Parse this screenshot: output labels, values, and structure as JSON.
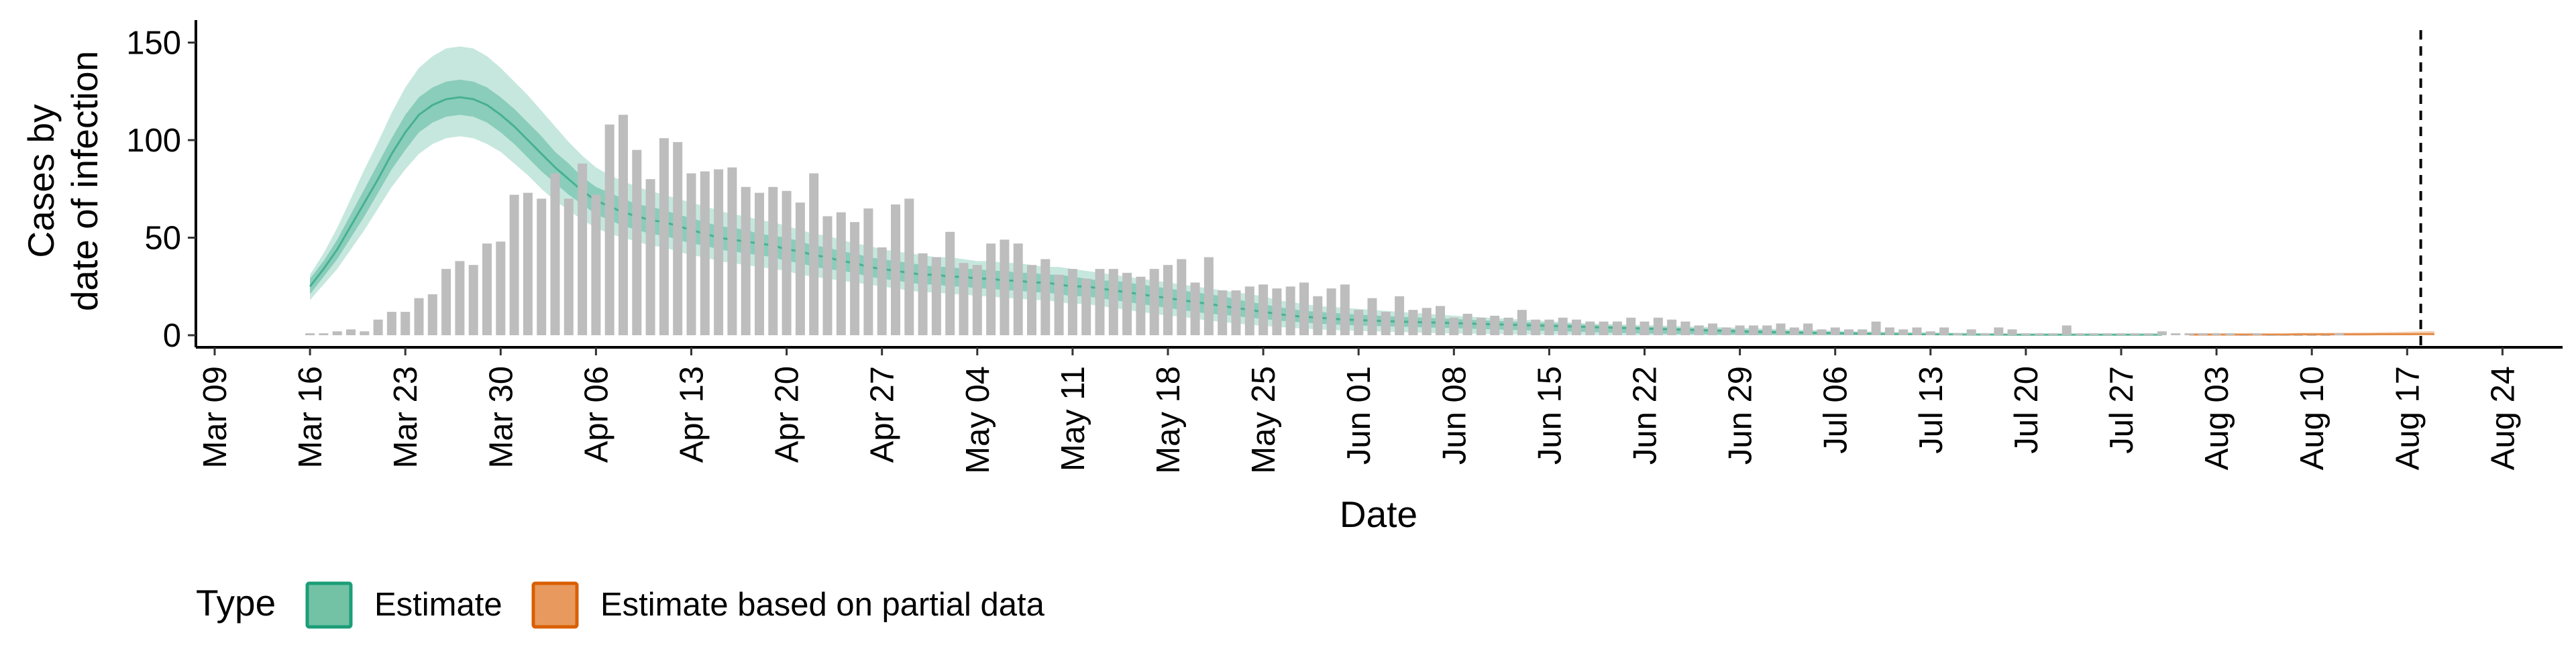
{
  "chart_data": {
    "type": "bar",
    "xlabel": "Date",
    "ylabel_lines": [
      "Cases by",
      "date of infection"
    ],
    "ylim": [
      -5,
      160
    ],
    "y_ticks": [
      0,
      50,
      100,
      150
    ],
    "x_ticks": [
      "Mar 09",
      "Mar 16",
      "Mar 23",
      "Mar 30",
      "Apr 06",
      "Apr 13",
      "Apr 20",
      "Apr 27",
      "May 04",
      "May 11",
      "May 18",
      "May 25",
      "Jun 01",
      "Jun 08",
      "Jun 15",
      "Jun 22",
      "Jun 29",
      "Jul 06",
      "Jul 13",
      "Jul 20",
      "Jul 27",
      "Aug 03",
      "Aug 10",
      "Aug 17",
      "Aug 24"
    ],
    "grid": false,
    "vline_day": 162,
    "reported_cases": {
      "start_date": "Mar 16",
      "values": [
        1,
        1,
        2,
        3,
        2,
        8,
        12,
        12,
        19,
        21,
        34,
        38,
        36,
        47,
        48,
        72,
        73,
        70,
        83,
        70,
        88,
        72,
        108,
        113,
        95,
        80,
        101,
        99,
        83,
        84,
        85,
        86,
        76,
        73,
        76,
        74,
        68,
        83,
        61,
        63,
        58,
        65,
        45,
        67,
        70,
        42,
        40,
        53,
        37,
        36,
        47,
        49,
        47,
        36,
        39,
        31,
        34,
        29,
        34,
        34,
        32,
        30,
        34,
        36,
        39,
        27,
        40,
        23,
        23,
        25,
        26,
        24,
        25,
        27,
        20,
        24,
        26,
        13,
        19,
        12,
        20,
        13,
        14,
        15,
        9,
        11,
        9,
        10,
        9,
        13,
        8,
        8,
        9,
        8,
        7,
        7,
        7,
        9,
        7,
        9,
        8,
        7,
        5,
        6,
        4,
        5,
        5,
        5,
        6,
        4,
        6,
        3,
        4,
        3,
        3,
        7,
        4,
        3,
        4,
        2,
        4,
        1,
        3,
        1,
        4,
        3,
        1,
        1,
        1,
        5,
        1,
        1,
        1,
        1,
        1,
        1,
        2,
        1,
        1,
        1,
        1,
        1,
        0,
        1,
        0,
        0,
        0,
        0,
        0,
        1
      ]
    },
    "estimate": {
      "name": "Estimate",
      "color": "#1b9e77",
      "start_date": "Mar 16",
      "median": [
        25,
        34,
        44,
        56,
        68,
        80,
        93,
        104,
        113,
        118,
        121,
        122,
        121,
        118,
        113,
        107,
        100,
        93,
        86,
        80,
        74,
        69,
        66,
        63,
        61,
        59,
        58,
        56,
        54,
        52,
        50,
        49,
        48,
        47,
        46,
        44,
        43,
        41,
        40,
        38,
        37,
        35,
        34,
        33,
        32,
        31,
        31,
        30,
        30,
        29,
        29,
        28,
        28,
        27,
        27,
        26,
        25,
        25,
        24,
        23,
        22,
        21,
        20,
        19,
        18,
        17,
        16,
        15,
        14,
        13,
        12,
        11,
        10,
        9.5,
        9,
        8.5,
        8,
        7.8,
        7.5,
        7.2,
        7,
        6.8,
        6.6,
        6.4,
        6.2,
        6,
        5.8,
        5.6,
        5.4,
        5.2,
        5,
        4.8,
        4.6,
        4.4,
        4.2,
        4,
        3.8,
        3.6,
        3.4,
        3.2,
        3,
        2.8,
        2.6,
        2.4,
        2.2,
        2,
        1.8,
        1.6,
        1.5,
        1.4,
        1.3,
        1.2,
        1.1,
        1,
        0.9,
        0.8,
        0.7,
        0.6,
        0.5,
        0.5,
        0.4,
        0.4,
        0.3,
        0.3,
        0.3,
        0.2,
        0.2,
        0.2,
        0.2,
        0.2,
        0.2,
        0.2,
        0.2,
        0.2,
        0.2,
        0.2,
        0.2
      ],
      "inner_lower": [
        21,
        30,
        39,
        50,
        61,
        73,
        85,
        95,
        104,
        109,
        112,
        113,
        112,
        109,
        104,
        98,
        91,
        84,
        78,
        72,
        67,
        62,
        59,
        56,
        54,
        52,
        51,
        49,
        47,
        46,
        44,
        43,
        42,
        41,
        40,
        38,
        37,
        35,
        34,
        33,
        32,
        30,
        29,
        28,
        27,
        26,
        26,
        25,
        25,
        24,
        24,
        23,
        23,
        22,
        22,
        21,
        20,
        20,
        19,
        18,
        17,
        16,
        15,
        14,
        13,
        12,
        11,
        10.5,
        9.8,
        9,
        8.3,
        7.6,
        7,
        6.5,
        6,
        5.6,
        5.2,
        5,
        4.8,
        4.6,
        4.4,
        4.2,
        4,
        3.8,
        3.6,
        3.4,
        3.2,
        3,
        2.8,
        2.6,
        2.4,
        2.2,
        2,
        1.8,
        1.6,
        1.4,
        1.2,
        1,
        0.9,
        0.8,
        0.7,
        0.6,
        0.5,
        0.4,
        0.3,
        0.3,
        0.2,
        0.2,
        0.2,
        0.1,
        0.1,
        0.1,
        0.1,
        0.1,
        0.1,
        0.1,
        0.1,
        0.1,
        0.1,
        0.1,
        0.1,
        0.1,
        0.1,
        0.1,
        0.1,
        0.1,
        0.1,
        0.1,
        0.1,
        0.1,
        0.1,
        0.1,
        0.1,
        0.1,
        0.1
      ],
      "inner_upper": [
        29,
        38,
        49,
        62,
        75,
        88,
        101,
        113,
        122,
        127,
        130,
        131,
        130,
        127,
        122,
        116,
        109,
        102,
        94,
        88,
        81,
        76,
        73,
        70,
        67,
        66,
        64,
        62,
        60,
        58,
        56,
        55,
        54,
        52,
        51,
        50,
        48,
        46,
        45,
        43,
        42,
        40,
        39,
        38,
        37,
        36,
        35,
        35,
        34,
        34,
        33,
        33,
        32,
        32,
        31,
        31,
        30,
        29,
        28,
        28,
        27,
        26,
        25,
        24,
        23,
        22,
        21,
        20,
        18.5,
        17,
        16,
        14.5,
        13.5,
        12.5,
        12,
        11.5,
        11,
        10.6,
        10.2,
        9.8,
        9.5,
        9.2,
        8.9,
        8.6,
        8.3,
        8,
        7.7,
        7.4,
        7.1,
        6.8,
        6.5,
        6.2,
        5.9,
        5.6,
        5.3,
        5,
        4.8,
        4.6,
        4.4,
        4.2,
        4,
        3.8,
        3.6,
        3.4,
        3.2,
        3,
        2.8,
        2.6,
        2.4,
        2.2,
        2,
        1.8,
        1.6,
        1.4,
        1.2,
        1,
        0.9,
        0.8,
        0.7,
        0.6,
        0.5,
        0.5,
        0.4,
        0.4,
        0.4,
        0.4,
        0.4,
        0.4,
        0.4,
        0.4,
        0.4,
        0.4,
        0.4,
        0.4,
        0.4
      ],
      "outer_lower": [
        18,
        26,
        34,
        44,
        54,
        65,
        76,
        85,
        93,
        98,
        101,
        102,
        101,
        98,
        94,
        88,
        82,
        75,
        69,
        64,
        59,
        55,
        52,
        50,
        48,
        46,
        45,
        43,
        41,
        40,
        38,
        37,
        36,
        35,
        34,
        33,
        31,
        30,
        29,
        28,
        27,
        26,
        25,
        24,
        23,
        22,
        22,
        21,
        21,
        20,
        20,
        19,
        19,
        18,
        18,
        17,
        16,
        16,
        15,
        14,
        13,
        12,
        11,
        10,
        9.5,
        8.5,
        7.5,
        6.8,
        6,
        5.4,
        4.8,
        4.3,
        3.8,
        3.4,
        3,
        2.7,
        2.4,
        2.2,
        2,
        1.8,
        1.6,
        1.4,
        1.2,
        1,
        0.9,
        0.8,
        0.7,
        0.6,
        0.5,
        0.4,
        0.3,
        0.3,
        0.2,
        0.2,
        0.1,
        0.1,
        0,
        0,
        0,
        0,
        0,
        0,
        0,
        0,
        0,
        0,
        0,
        0,
        0,
        0,
        0,
        0,
        0,
        0,
        0,
        0,
        0,
        0,
        0,
        0,
        0,
        0,
        0,
        0,
        0,
        0,
        0,
        0,
        0,
        0,
        0,
        0,
        0,
        0,
        0,
        0,
        0
      ],
      "outer_upper": [
        31,
        42,
        55,
        70,
        85,
        99,
        114,
        127,
        137,
        143,
        147,
        148,
        147,
        143,
        137,
        130,
        123,
        115,
        107,
        99,
        92,
        86,
        82,
        79,
        76,
        74,
        72,
        70,
        68,
        66,
        64,
        62,
        61,
        59,
        58,
        56,
        54,
        52,
        51,
        49,
        47,
        46,
        44,
        43,
        42,
        41,
        40,
        40,
        39,
        38,
        38,
        37,
        37,
        36,
        35,
        35,
        34,
        33,
        32,
        31,
        30,
        29,
        28,
        27,
        26,
        25,
        24,
        23,
        22,
        21,
        20,
        18,
        17,
        16,
        15,
        14.5,
        14,
        13.5,
        13,
        12.5,
        12,
        11.5,
        11,
        10.5,
        10,
        9.6,
        9.2,
        8.8,
        8.4,
        8,
        7.6,
        7.2,
        6.8,
        6.4,
        6,
        5.8,
        5.6,
        5.4,
        5.2,
        5,
        4.8,
        4.6,
        4.4,
        4.2,
        4,
        3.8,
        3.6,
        3.4,
        3.2,
        3,
        2.8,
        2.6,
        2.4,
        2.2,
        2,
        1.9,
        1.8,
        1.7,
        1.6,
        1.5,
        1.4,
        1.3,
        1.2,
        1.1,
        1,
        1,
        1,
        1,
        1,
        1,
        1,
        1,
        1,
        1,
        1,
        1,
        1
      ]
    },
    "partial_estimate": {
      "name": "Estimate based on partial data",
      "color": "#d95f02",
      "start_date": "Aug 01",
      "median": [
        0.3,
        0.3,
        0.3,
        0.3,
        0.3,
        0.3,
        0.3,
        0.3,
        0.4,
        0.4,
        0.4,
        0.4,
        0.4,
        0.4,
        0.5,
        0.5,
        0.5,
        0.6,
        0.6
      ],
      "lower": [
        0,
        0,
        0,
        0,
        0,
        0,
        0,
        0,
        0,
        0,
        0,
        0,
        0,
        0,
        0,
        0,
        0,
        0,
        0
      ],
      "upper": [
        1,
        1,
        1,
        1,
        1,
        1,
        1,
        1,
        1.2,
        1.2,
        1.2,
        1.3,
        1.3,
        1.4,
        1.5,
        1.6,
        1.8,
        2,
        2.2
      ]
    },
    "legend": {
      "title": "Type",
      "position": "bottom-left",
      "items": [
        {
          "label": "Estimate",
          "fill": "#74c2a6",
          "stroke": "#1b9e77"
        },
        {
          "label": "Estimate based on partial data",
          "fill": "#e89a5e",
          "stroke": "#d95f02"
        }
      ]
    },
    "colors": {
      "bars": "#bdbdbd",
      "outer_band": "#1b9e77",
      "inner_band": "#1b9e77",
      "axis": "#000000"
    }
  }
}
